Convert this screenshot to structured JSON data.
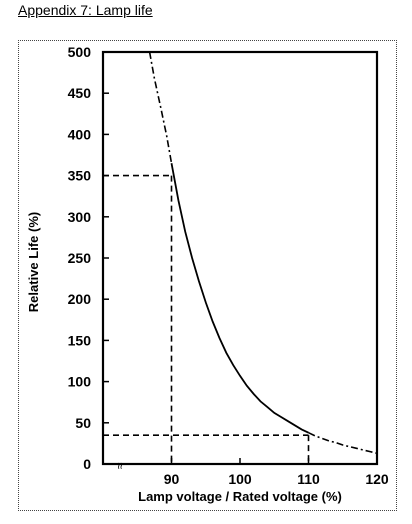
{
  "header": {
    "title": "Appendix 7: Lamp life"
  },
  "chart_data": {
    "type": "line",
    "title": "",
    "xlabel": "Lamp voltage / Rated voltage (%)",
    "ylabel": "Relative Life   (%)",
    "xlim": [
      80,
      120
    ],
    "ylim": [
      0,
      500
    ],
    "x_ticks": [
      "90",
      "100",
      "110",
      "120"
    ],
    "y_ticks": [
      "0",
      "50",
      "100",
      "150",
      "200",
      "250",
      "300",
      "350",
      "400",
      "450",
      "500"
    ],
    "axis_break_symbol": "≈",
    "grid": false,
    "legend": "none",
    "series": [
      {
        "x": [
          86.8,
          87.5,
          88.5,
          89.3,
          90.0,
          91.0,
          92.0,
          93.0,
          94.0,
          95.0,
          96.0,
          97.0,
          98.0,
          99.0,
          100.0,
          101.0,
          102.0,
          103.0,
          104.0,
          105.0,
          106.0,
          107.0,
          108.0,
          109.0,
          110.0,
          111.0,
          112.0,
          113.0,
          114.0,
          115.0,
          116.0,
          117.0,
          118.0,
          119.0,
          120.0
        ],
        "y": [
          500,
          468,
          430,
          398,
          365,
          320,
          282,
          250,
          222,
          196,
          173,
          153,
          135,
          120,
          107,
          95,
          85,
          76,
          69,
          62,
          57,
          52,
          47,
          42,
          38,
          34,
          31,
          28,
          26,
          23,
          21,
          19,
          17,
          15,
          13
        ],
        "style": "dash-dot beyond 90–110"
      }
    ],
    "reference_lines": [
      {
        "x": 90,
        "y": 350
      },
      {
        "x": 110,
        "y": 35
      }
    ],
    "colors": {
      "line": "#000000",
      "frame": "#444444"
    }
  }
}
